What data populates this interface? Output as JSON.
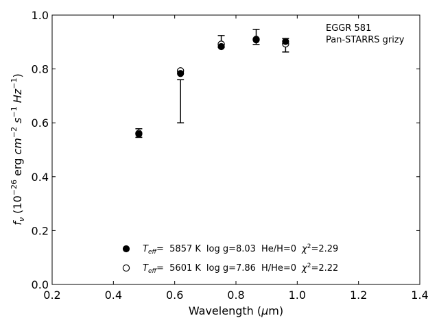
{
  "chart_data": {
    "type": "scatter",
    "title": "",
    "annotation": [
      "EGGR 581",
      "Pan-STARRS grizy"
    ],
    "xlabel": "Wavelength (μm)",
    "ylabel": "f_ν (10^-26 erg cm^-2 s^-1 Hz^-1)",
    "xlim": [
      0.2,
      1.4
    ],
    "ylim": [
      0.0,
      1.0
    ],
    "x_ticks": [
      "0.2",
      "0.4",
      "0.6",
      "0.8",
      "1.0",
      "1.2",
      "1.4"
    ],
    "y_ticks": [
      "0.0",
      "0.2",
      "0.4",
      "0.6",
      "0.8",
      "1.0"
    ],
    "grid": false,
    "legend_position": "lower-center",
    "observed": {
      "x": [
        0.483,
        0.619,
        0.752,
        0.866,
        0.962
      ],
      "y": [
        0.562,
        0.68,
        0.902,
        0.919,
        0.888
      ],
      "yerr": [
        0.016,
        0.08,
        0.022,
        0.028,
        0.025
      ]
    },
    "series": [
      {
        "name": "T_eff= 5857 K log g=8.03 He/H=0 χ²=2.29",
        "marker": "filled-circle",
        "x": [
          0.483,
          0.619,
          0.752,
          0.866,
          0.962
        ],
        "y": [
          0.558,
          0.783,
          0.883,
          0.908,
          0.902
        ]
      },
      {
        "name": "T_eff= 5601 K log g=7.86 H/He=0 χ²=2.22",
        "marker": "open-circle",
        "x": [
          0.483,
          0.619,
          0.752,
          0.866,
          0.962
        ],
        "y": [
          0.561,
          0.793,
          0.892,
          0.91,
          0.893
        ]
      }
    ],
    "legend": [
      {
        "marker": "filled-circle",
        "teff_label": "T",
        "teff_sub": "eff",
        "teff_value": "=  5857 K",
        "logg": "log g=8.03",
        "comp": "He/H=0",
        "chi_label": "χ",
        "chi_sup": "2",
        "chi_value": "=2.29"
      },
      {
        "marker": "open-circle",
        "teff_label": "T",
        "teff_sub": "eff",
        "teff_value": "=  5601 K",
        "logg": "log g=7.86",
        "comp": "H/He=0",
        "chi_label": "χ",
        "chi_sup": "2",
        "chi_value": "=2.22"
      }
    ]
  }
}
